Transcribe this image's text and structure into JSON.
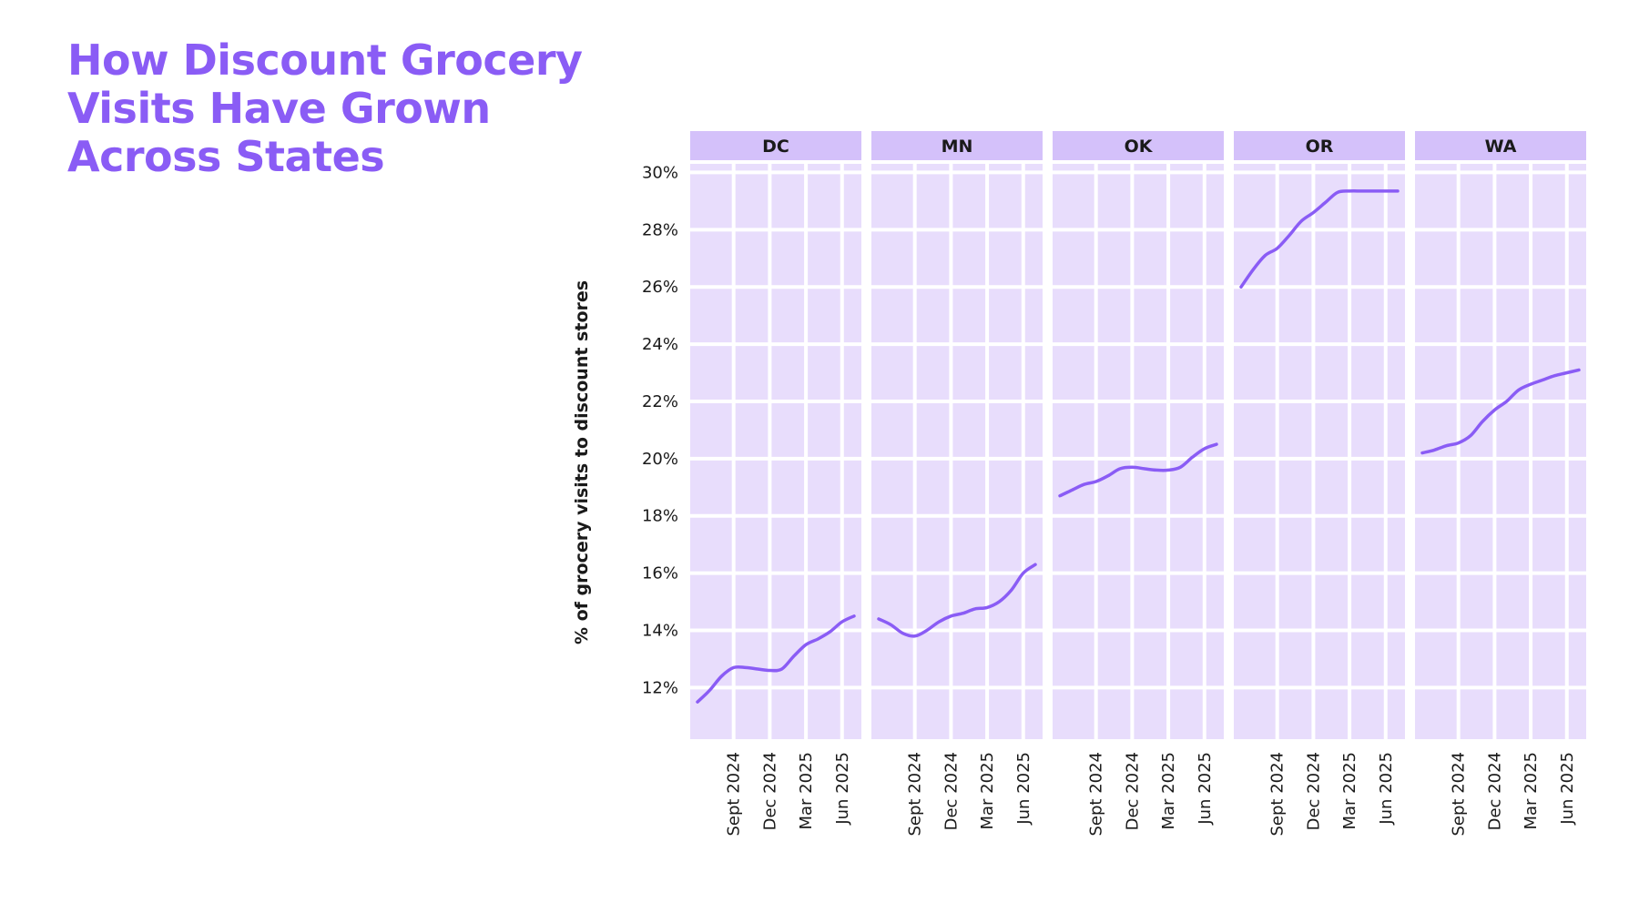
{
  "title": "How Discount Grocery Visits Have Grown Across States",
  "chart_data": {
    "type": "line",
    "title": "How Discount Grocery Visits Have Grown Across States",
    "ylabel": "% of grocery visits to discount stores",
    "xlabel": "",
    "ylim": [
      10.2,
      30.3
    ],
    "yticks": [
      "12%",
      "14%",
      "16%",
      "18%",
      "20%",
      "22%",
      "24%",
      "26%",
      "28%",
      "30%"
    ],
    "ytick_values": [
      12,
      14,
      16,
      18,
      20,
      22,
      24,
      26,
      28,
      30
    ],
    "xticks": [
      "Sept 2024",
      "Dec 2024",
      "Mar 2025",
      "Jun 2025"
    ],
    "grid": true,
    "line_color": "#8a5cf5",
    "panel_color": "#e8ddfc",
    "strip_color": "#d4c1fa",
    "title_color": "#8a5cf5",
    "x": [
      "2024-06",
      "2024-07",
      "2024-08",
      "2024-09",
      "2024-10",
      "2024-11",
      "2024-12",
      "2025-01",
      "2025-02",
      "2025-03",
      "2025-04",
      "2025-05",
      "2025-06",
      "2025-07"
    ],
    "facets": [
      {
        "name": "DC",
        "values": [
          11.5,
          11.9,
          12.4,
          12.7,
          12.7,
          12.65,
          12.6,
          12.65,
          13.1,
          13.5,
          13.7,
          13.95,
          14.3,
          14.5
        ]
      },
      {
        "name": "MN",
        "values": [
          14.4,
          14.2,
          13.9,
          13.8,
          14.0,
          14.3,
          14.5,
          14.6,
          14.75,
          14.8,
          15.0,
          15.4,
          16.0,
          16.3
        ]
      },
      {
        "name": "OK",
        "values": [
          18.7,
          18.9,
          19.1,
          19.2,
          19.4,
          19.65,
          19.7,
          19.65,
          19.6,
          19.6,
          19.7,
          20.05,
          20.35,
          20.5
        ]
      },
      {
        "name": "OR",
        "values": [
          26.0,
          26.6,
          27.1,
          27.35,
          27.8,
          28.3,
          28.6,
          28.95,
          29.3,
          29.35,
          29.35,
          29.35,
          29.35,
          29.35
        ]
      },
      {
        "name": "WA",
        "values": [
          20.2,
          20.3,
          20.45,
          20.55,
          20.8,
          21.3,
          21.7,
          22.0,
          22.4,
          22.6,
          22.75,
          22.9,
          23.0,
          23.1
        ]
      }
    ]
  }
}
